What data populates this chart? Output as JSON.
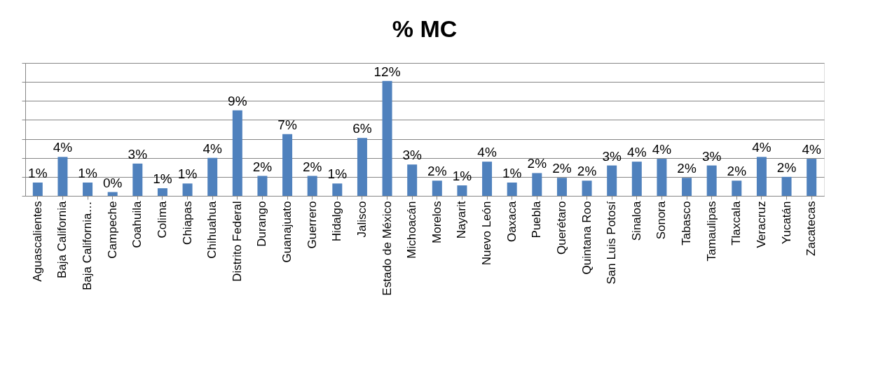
{
  "chart_data": {
    "type": "bar",
    "title": "% MC",
    "categories": [
      "Aguascalientes",
      "Baja California",
      "Baja California…",
      "Campeche",
      "Coahuila",
      "Colima",
      "Chiapas",
      "Chihuahua",
      "Distrito Federal",
      "Durango",
      "Guanajuato",
      "Guerrero",
      "Hidalgo",
      "Jalisco",
      "Estado de México",
      "Michoacán",
      "Morelos",
      "Nayarit",
      "Nuevo León",
      "Oaxaca",
      "Puebla",
      "Querétaro",
      "Quintana Roo",
      "San Luis Potosí",
      "Sinaloa",
      "Sonora",
      "Tabasco",
      "Tamaulipas",
      "Tlaxcala",
      "Veracruz",
      "Yucatán",
      "Zacatecas"
    ],
    "values": [
      1.4,
      4.1,
      1.4,
      0.4,
      3.4,
      0.8,
      1.3,
      4.0,
      9.0,
      2.1,
      6.5,
      2.1,
      1.3,
      6.1,
      12.1,
      3.3,
      1.6,
      1.1,
      3.6,
      1.4,
      2.4,
      1.9,
      1.6,
      3.2,
      3.6,
      3.9,
      1.9,
      3.2,
      1.6,
      4.1,
      2.0,
      3.9
    ],
    "value_labels": [
      "1%",
      "4%",
      "1%",
      "0%",
      "3%",
      "1%",
      "1%",
      "4%",
      "9%",
      "2%",
      "7%",
      "2%",
      "1%",
      "6%",
      "12%",
      "3%",
      "2%",
      "1%",
      "4%",
      "1%",
      "2%",
      "2%",
      "2%",
      "3%",
      "4%",
      "4%",
      "2%",
      "3%",
      "2%",
      "4%",
      "2%",
      "4%"
    ],
    "color": "#4f81bd",
    "ylim": [
      0,
      14
    ],
    "yticks": [
      {
        "value": 0,
        "label": null
      },
      {
        "value": 2,
        "label": null
      },
      {
        "value": 4,
        "label": null
      },
      {
        "value": 6,
        "label": null
      },
      {
        "value": 8,
        "label": null
      },
      {
        "value": 10,
        "label": null
      },
      {
        "value": 12,
        "label": null
      },
      {
        "value": 14,
        "label": null
      }
    ],
    "tick_labels": "x",
    "grid": "y"
  }
}
